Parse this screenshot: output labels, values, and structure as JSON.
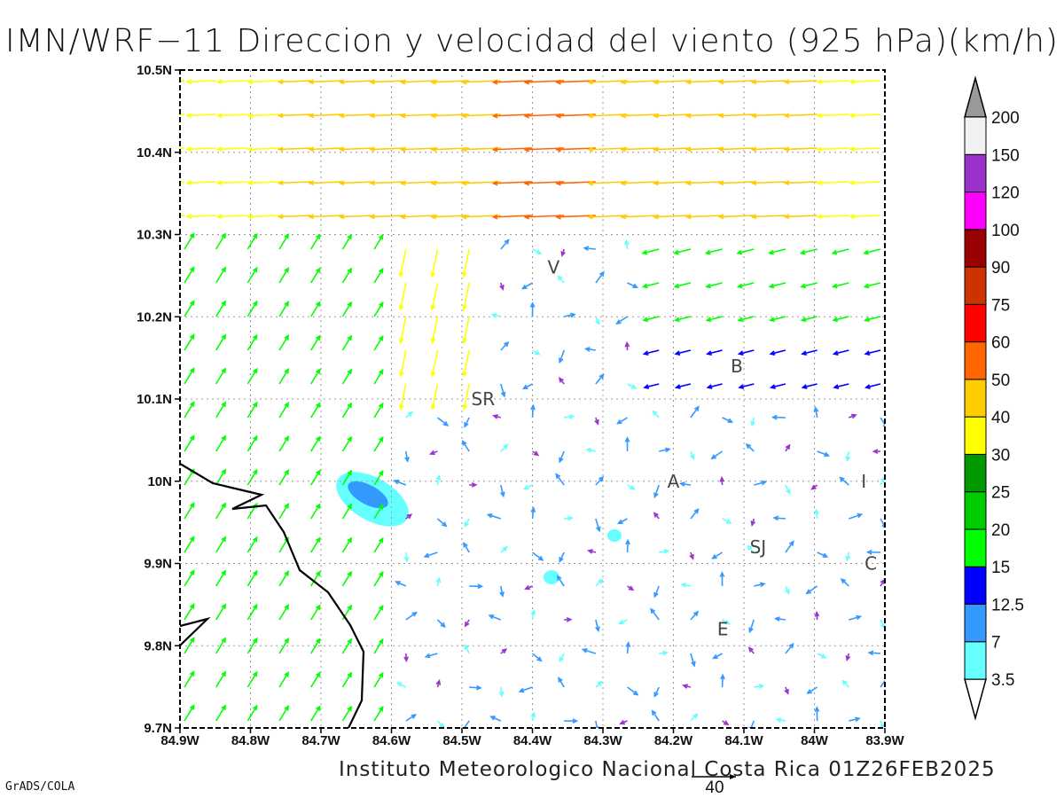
{
  "title": "IMN/WRF−11 Direccion y velocidad del viento (925 hPa)(km/h)",
  "credit": "Instituto Meteorologico Nacional Costa Rica 01Z26FEB2025",
  "software": "GrADS/COLA",
  "reference_vector_label": "40",
  "chart_data": {
    "type": "vector-field map",
    "x_ticks": [
      "84.9W",
      "84.8W",
      "84.7W",
      "84.6W",
      "84.5W",
      "84.4W",
      "84.3W",
      "84.2W",
      "84.1W",
      "84W",
      "83.9W"
    ],
    "y_ticks": [
      "10.5N",
      "10.4N",
      "10.3N",
      "10.2N",
      "10.1N",
      "10N",
      "9.9N",
      "9.8N",
      "9.7N"
    ],
    "lon_range": [
      -84.9,
      -83.9
    ],
    "lat_range": [
      9.7,
      10.5
    ],
    "grid": "dotted",
    "colorbar": {
      "labels": [
        "3.5",
        "7",
        "12.5",
        "15",
        "20",
        "25",
        "30",
        "40",
        "50",
        "60",
        "75",
        "90",
        "100",
        "120",
        "150",
        "200"
      ],
      "colors": [
        "#66ffff",
        "#3399ff",
        "#0000ff",
        "#00ff00",
        "#00cc00",
        "#009900",
        "#ffff00",
        "#ffcc00",
        "#ff6600",
        "#ff0000",
        "#cc3300",
        "#990000",
        "#ff00ff",
        "#9933cc",
        "#f2f2f2",
        "#999999"
      ]
    },
    "cities": [
      {
        "label": "V",
        "lon": -84.37,
        "lat": 10.26
      },
      {
        "label": "B",
        "lon": -84.11,
        "lat": 10.14
      },
      {
        "label": "SR",
        "lon": -84.47,
        "lat": 10.1
      },
      {
        "label": "A",
        "lon": -84.2,
        "lat": 10.0
      },
      {
        "label": "I",
        "lon": -83.93,
        "lat": 10.0
      },
      {
        "label": "SJ",
        "lon": -84.08,
        "lat": 9.92
      },
      {
        "label": "C",
        "lon": -83.92,
        "lat": 9.9
      },
      {
        "label": "E",
        "lon": -84.13,
        "lat": 9.82
      }
    ]
  }
}
